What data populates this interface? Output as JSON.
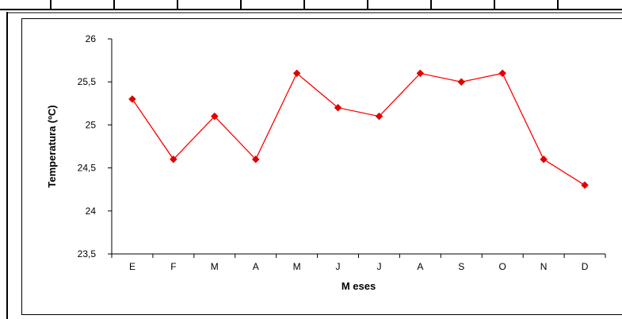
{
  "colors": {
    "series": "#ff0000",
    "marker": "#e00000",
    "axis": "#000000",
    "frame": "#000000"
  },
  "chart_data": {
    "type": "line",
    "title": "",
    "xlabel": "M eses",
    "ylabel": "Temperatura (ºC)",
    "categories": [
      "E",
      "F",
      "M",
      "A",
      "M",
      "J",
      "J",
      "A",
      "S",
      "O",
      "N",
      "D"
    ],
    "series": [
      {
        "values": [
          25.3,
          24.6,
          25.1,
          24.6,
          25.6,
          25.2,
          25.1,
          25.6,
          25.5,
          25.6,
          24.6,
          24.3
        ]
      }
    ],
    "ylim": [
      23.5,
      26
    ],
    "yticks": [
      "23,5",
      "24",
      "24,5",
      "25",
      "25,5",
      "26"
    ],
    "grid": false,
    "legend": "none"
  }
}
